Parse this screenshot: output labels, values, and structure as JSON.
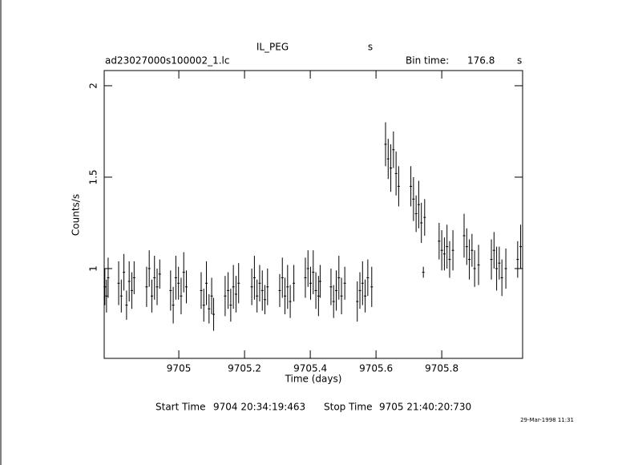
{
  "chart_data": {
    "type": "errorbar",
    "title": "IL_PEG",
    "title_unit": "s",
    "file_name": "ad23027000s100002_1.lc",
    "bin_time_label": "Bin time:",
    "bin_time": "176.8",
    "bin_time_unit": "s",
    "x_label": "Time (days)",
    "y_label": "Counts/s",
    "start_time_label": "Start Time",
    "start_time": "9704 20:34:19:463",
    "stop_time_label": "Stop Time",
    "stop_time": "9705 21:40:20:730",
    "timestamp": "29-Mar-1998 11:31",
    "xlim": [
      9704.773,
      9706.046
    ],
    "ylim": [
      0.509,
      2.083
    ],
    "xticks": [
      9705,
      9705.2,
      9705.4,
      9705.6,
      9705.8
    ],
    "yticks": [
      1,
      1.5,
      2
    ],
    "color": "#000000",
    "x": [
      9704.775,
      9704.78,
      9704.785,
      9704.817,
      9704.825,
      9704.833,
      9704.841,
      9704.849,
      9704.857,
      9704.864,
      9704.902,
      9704.91,
      9704.918,
      9704.926,
      9704.934,
      9704.942,
      9704.975,
      9704.983,
      9704.991,
      9704.999,
      9705.007,
      9705.015,
      9705.023,
      9705.068,
      9705.076,
      9705.084,
      9705.092,
      9705.1,
      9705.106,
      9705.141,
      9705.15,
      9705.158,
      9705.166,
      9705.174,
      9705.182,
      9705.222,
      9705.23,
      9705.238,
      9705.246,
      9705.254,
      9705.262,
      9705.27,
      9705.307,
      9705.315,
      9705.323,
      9705.331,
      9705.339,
      9705.35,
      9705.385,
      9705.393,
      9705.401,
      9705.409,
      9705.417,
      9705.425,
      9705.43,
      9705.463,
      9705.471,
      9705.479,
      9705.487,
      9705.495,
      9705.505,
      9705.543,
      9705.551,
      9705.559,
      9705.567,
      9705.575,
      9705.587,
      9705.629,
      9705.637,
      9705.645,
      9705.653,
      9705.661,
      9705.669,
      9705.706,
      9705.714,
      9705.722,
      9705.73,
      9705.738,
      9705.744,
      9705.748,
      9705.792,
      9705.8,
      9705.808,
      9705.816,
      9705.824,
      9705.834,
      9705.868,
      9705.876,
      9705.884,
      9705.892,
      9705.9,
      9705.912,
      9705.951,
      9705.959,
      9705.967,
      9705.975,
      9705.983,
      9705.995,
      9706.031,
      9706.04
    ],
    "values": [
      0.9,
      0.85,
      0.95,
      0.92,
      0.85,
      0.98,
      0.8,
      0.93,
      0.88,
      0.95,
      0.9,
      1.0,
      0.85,
      0.95,
      0.9,
      0.97,
      0.88,
      0.8,
      0.95,
      0.92,
      0.85,
      0.98,
      0.9,
      0.88,
      0.8,
      0.92,
      0.78,
      0.85,
      0.75,
      0.85,
      0.88,
      0.8,
      0.9,
      0.86,
      0.92,
      0.9,
      0.95,
      0.85,
      0.92,
      0.88,
      0.83,
      0.9,
      0.88,
      0.95,
      0.85,
      0.9,
      0.82,
      0.92,
      0.95,
      1.0,
      0.92,
      0.98,
      0.88,
      0.85,
      0.93,
      0.9,
      0.82,
      0.88,
      0.95,
      0.85,
      0.92,
      0.82,
      0.88,
      0.92,
      0.85,
      0.95,
      0.9,
      1.68,
      1.6,
      1.55,
      1.65,
      1.52,
      1.45,
      1.45,
      1.38,
      1.3,
      1.35,
      1.25,
      0.98,
      1.28,
      1.15,
      1.1,
      1.08,
      1.12,
      1.05,
      1.1,
      1.18,
      1.12,
      1.05,
      1.1,
      1.0,
      1.02,
      1.05,
      1.1,
      1.0,
      1.03,
      0.95,
      1.0,
      1.05,
      1.12
    ],
    "errors": [
      0.1,
      0.09,
      0.11,
      0.12,
      0.09,
      0.1,
      0.08,
      0.11,
      0.1,
      0.09,
      0.11,
      0.1,
      0.09,
      0.12,
      0.1,
      0.08,
      0.11,
      0.1,
      0.12,
      0.09,
      0.1,
      0.11,
      0.09,
      0.1,
      0.09,
      0.12,
      0.08,
      0.1,
      0.09,
      0.11,
      0.1,
      0.09,
      0.12,
      0.1,
      0.11,
      0.1,
      0.12,
      0.09,
      0.1,
      0.11,
      0.08,
      0.1,
      0.09,
      0.11,
      0.1,
      0.12,
      0.09,
      0.1,
      0.11,
      0.1,
      0.09,
      0.12,
      0.1,
      0.11,
      0.09,
      0.1,
      0.09,
      0.11,
      0.12,
      0.1,
      0.09,
      0.11,
      0.1,
      0.12,
      0.09,
      0.1,
      0.11,
      0.12,
      0.11,
      0.13,
      0.1,
      0.12,
      0.11,
      0.11,
      0.12,
      0.1,
      0.13,
      0.11,
      0.03,
      0.1,
      0.1,
      0.11,
      0.09,
      0.12,
      0.1,
      0.11,
      0.12,
      0.1,
      0.11,
      0.09,
      0.1,
      0.11,
      0.11,
      0.1,
      0.12,
      0.09,
      0.1,
      0.11,
      0.1,
      0.12
    ]
  }
}
